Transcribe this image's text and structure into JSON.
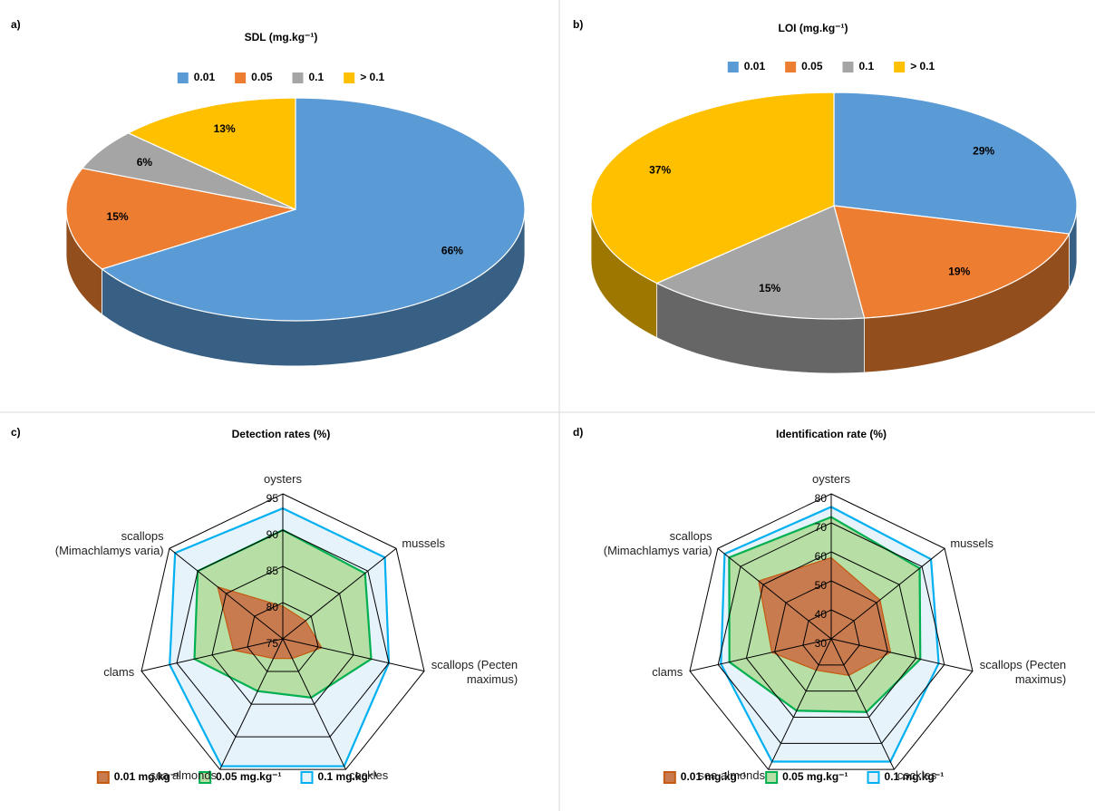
{
  "chart_data": [
    {
      "type": "pie",
      "panel_label": "a)",
      "title": "SDL (mg.kg⁻¹)",
      "categories": [
        "0.01",
        "0.05",
        "0.1",
        "> 0.1"
      ],
      "values": [
        66,
        15,
        6,
        13
      ],
      "value_labels": [
        "66%",
        "15%",
        "6%",
        "13%"
      ],
      "colors": [
        "#5b9bd5",
        "#ed7d31",
        "#a5a5a5",
        "#ffc000"
      ],
      "legend": "top"
    },
    {
      "type": "pie",
      "panel_label": "b)",
      "title": "LOI (mg.kg⁻¹)",
      "categories": [
        "0.01",
        "0.05",
        "0.1",
        "> 0.1"
      ],
      "values": [
        29,
        19,
        15,
        37
      ],
      "value_labels": [
        "29%",
        "19%",
        "15%",
        "37%"
      ],
      "colors": [
        "#5b9bd5",
        "#ed7d31",
        "#a5a5a5",
        "#ffc000"
      ],
      "legend": "top"
    },
    {
      "type": "radar",
      "panel_label": "c)",
      "title": "Detection rates (%)",
      "categories": [
        "oysters",
        "mussels",
        "scallops (Pecten\nmaximus)",
        "cockles",
        "sea almonds",
        "clams",
        "scallops\n(Mimachlamys varia)"
      ],
      "ylim": [
        75,
        95
      ],
      "yticks": [
        75,
        80,
        85,
        90,
        95
      ],
      "series": [
        {
          "name": "0.01 mg.kg⁻¹",
          "color": "#c55a11",
          "fill": "#c77b4f",
          "values": [
            79.5,
            79,
            80.5,
            78,
            78,
            82,
            86.5
          ]
        },
        {
          "name": "0.05 mg.kg⁻¹",
          "color": "#00b050",
          "fill": "#b7dfa5",
          "values": [
            90,
            89.5,
            87.5,
            84,
            83,
            87.5,
            90
          ]
        },
        {
          "name": "0.1 mg.kg⁻¹",
          "color": "#00b0f0",
          "fill": "#e6f3fb",
          "values": [
            93,
            93,
            90,
            94.5,
            94.5,
            91,
            94
          ]
        }
      ],
      "legend": "bottom"
    },
    {
      "type": "radar",
      "panel_label": "d)",
      "title": "Identification rate (%)",
      "categories": [
        "oysters",
        "mussels",
        "scallops (Pecten\nmaximus)",
        "cockles",
        "sea almonds",
        "clams",
        "scallops\n(Mimachlamys varia)"
      ],
      "ylim": [
        30,
        80
      ],
      "yticks": [
        30,
        40,
        50,
        60,
        70,
        80
      ],
      "series": [
        {
          "name": "0.01 mg.kg⁻¹",
          "color": "#c55a11",
          "fill": "#c77b4f",
          "values": [
            58,
            51.5,
            51,
            44,
            42,
            51,
            62
          ]
        },
        {
          "name": "0.05 mg.kg⁻¹",
          "color": "#00b050",
          "fill": "#b7dfa5",
          "values": [
            72,
            69,
            61.5,
            58,
            57.5,
            66,
            75
          ]
        },
        {
          "name": "0.1 mg.kg⁻¹",
          "color": "#00b0f0",
          "fill": "#e6f3fb",
          "values": [
            75.5,
            74,
            68,
            77,
            77,
            69,
            77
          ]
        }
      ],
      "legend": "bottom"
    }
  ]
}
